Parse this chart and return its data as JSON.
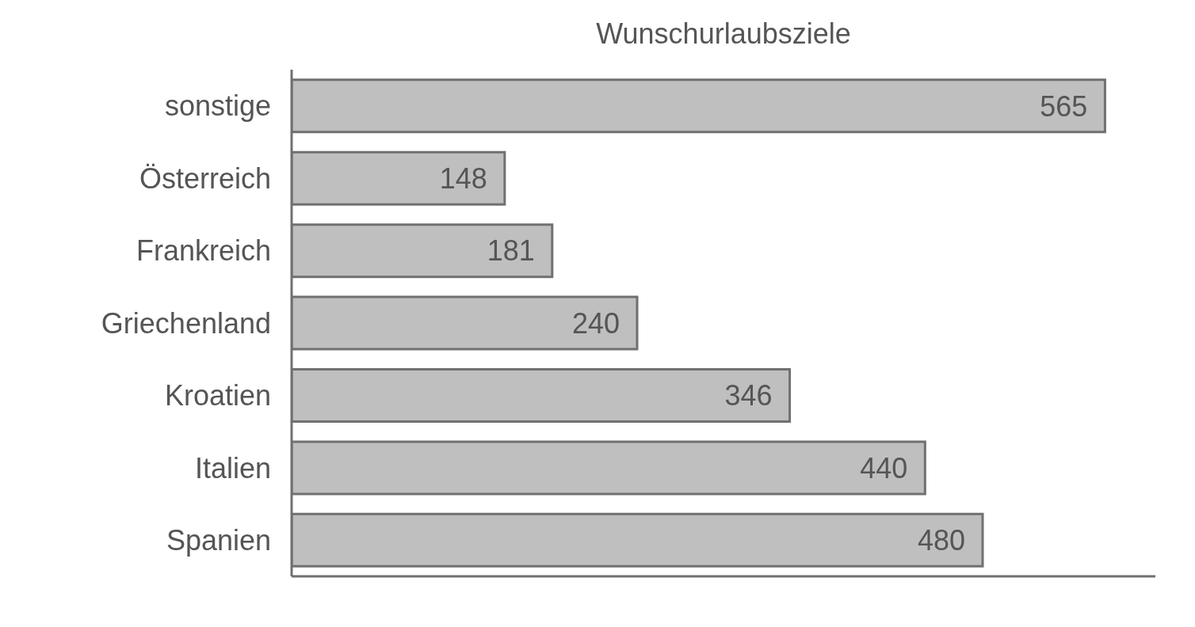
{
  "chart_data": {
    "type": "bar",
    "orientation": "horizontal",
    "title": "Wunschurlaubsziele",
    "categories": [
      "sonstige",
      "Österreich",
      "Frankreich",
      "Griechenland",
      "Kroatien",
      "Italien",
      "Spanien"
    ],
    "values": [
      565,
      148,
      181,
      240,
      346,
      440,
      480
    ],
    "color": "#bfbfbf",
    "xlim": [
      0,
      600
    ],
    "data_labels": true,
    "tick_labels": "y",
    "grid": false,
    "legend": false
  }
}
